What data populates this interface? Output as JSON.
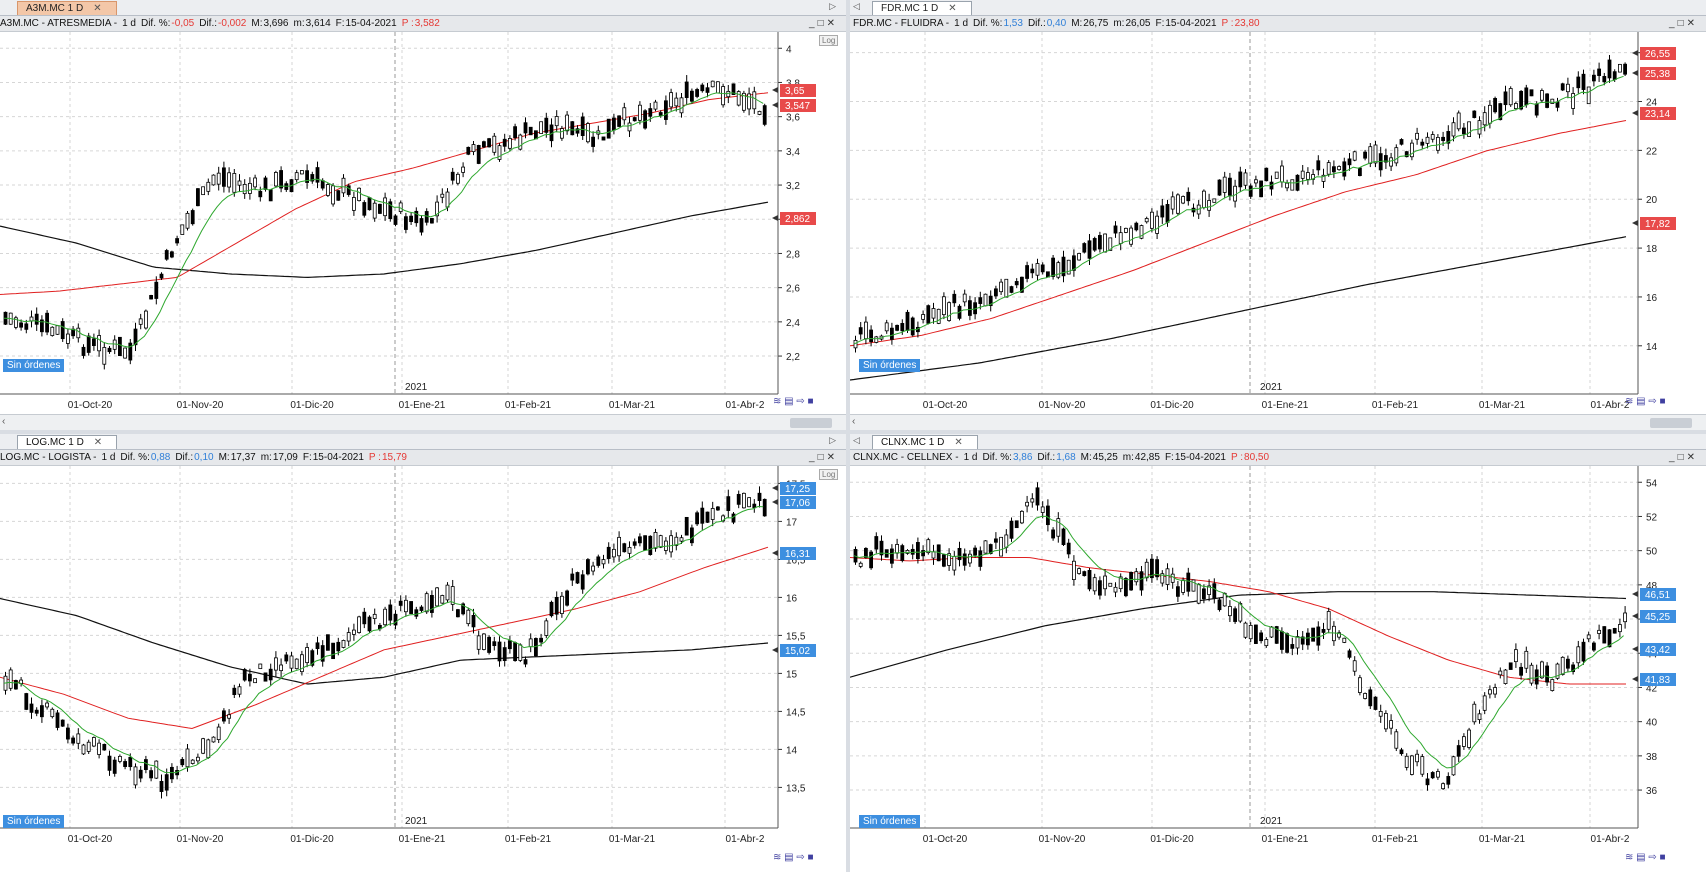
{
  "sin_ordenes": "Sin órdenes",
  "year_label": "2021",
  "log_button": "Log",
  "x_dates": [
    "01-Oct-20",
    "01-Nov-20",
    "01-Dic-20",
    "01-Ene-21",
    "01-Feb-21",
    "01-Mar-21",
    "01-Abr-2"
  ],
  "colors": {
    "ema_fast": "#2ea82e",
    "ema_mid": "#e02020",
    "ema_slow": "#111111",
    "bar": "#000000",
    "badge_red": "#e84a4a",
    "badge_blue": "#3d8fe0"
  },
  "panels": [
    {
      "tab": "A3M.MC 1 D",
      "symbol": "A3M.MC - ATRESMEDIA -",
      "period": "1 d",
      "dif_pct_label": "Dif. %:",
      "dif_pct": "-0,05",
      "dif_label": "Dif.:",
      "dif": "-0,002",
      "max_label": "M:",
      "max": "3,696",
      "min_label": "m:",
      "min": "3,614",
      "date_label": "F:",
      "date": "15-04-2021",
      "p_label": "P :",
      "p": "3,582",
      "y_ticks": [
        "4",
        "3,8",
        "3,6",
        "3,4",
        "3,2",
        "3",
        "2,8",
        "2,6",
        "2,4",
        "2,2"
      ],
      "badges": [
        {
          "text": "3,65",
          "color": "#e84a4a"
        },
        {
          "text": "3,547",
          "color": "#e84a4a"
        },
        {
          "text": "2,862",
          "color": "#e84a4a"
        }
      ]
    },
    {
      "tab": "FDR.MC 1 D",
      "symbol": "FDR.MC - FLUIDRA -",
      "period": "1 d",
      "dif_pct_label": "Dif. %:",
      "dif_pct": "1,53",
      "dif_label": "Dif.:",
      "dif": "0,40",
      "max_label": "M:",
      "max": "26,75",
      "min_label": "m:",
      "min": "26,05",
      "date_label": "F:",
      "date": "15-04-2021",
      "p_label": "P :",
      "p": "23,80",
      "y_ticks": [
        "26",
        "24",
        "22",
        "20",
        "18",
        "16",
        "14"
      ],
      "badges": [
        {
          "text": "26,55",
          "color": "#e84a4a"
        },
        {
          "text": "25,38",
          "color": "#e84a4a"
        },
        {
          "text": "23,14",
          "color": "#e84a4a"
        },
        {
          "text": "17,82",
          "color": "#e84a4a"
        }
      ]
    },
    {
      "tab": "LOG.MC 1 D",
      "symbol": "LOG.MC - LOGISTA -",
      "period": "1 d",
      "dif_pct_label": "Dif. %:",
      "dif_pct": "0,88",
      "dif_label": "Dif.:",
      "dif": "0,10",
      "max_label": "M:",
      "max": "17,37",
      "min_label": "m:",
      "min": "17,09",
      "date_label": "F:",
      "date": "15-04-2021",
      "p_label": "P :",
      "p": "15,79",
      "y_ticks": [
        "17,5",
        "17",
        "16,5",
        "16",
        "15,5",
        "15",
        "14,5",
        "14",
        "13,5"
      ],
      "badges": [
        {
          "text": "17,25",
          "color": "#3d8fe0"
        },
        {
          "text": "17,06",
          "color": "#3d8fe0"
        },
        {
          "text": "16,31",
          "color": "#3d8fe0"
        },
        {
          "text": "15,02",
          "color": "#3d8fe0"
        }
      ]
    },
    {
      "tab": "CLNX.MC 1 D",
      "symbol": "CLNX.MC - CELLNEX -",
      "period": "1 d",
      "dif_pct_label": "Dif. %:",
      "dif_pct": "3,86",
      "dif_label": "Dif.:",
      "dif": "1,68",
      "max_label": "M:",
      "max": "45,25",
      "min_label": "m:",
      "min": "42,85",
      "date_label": "F:",
      "date": "15-04-2021",
      "p_label": "P :",
      "p": "80,50",
      "y_ticks": [
        "54",
        "52",
        "50",
        "48",
        "46",
        "44",
        "42",
        "40",
        "38",
        "36"
      ],
      "badges": [
        {
          "text": "46,51",
          "color": "#3d8fe0"
        },
        {
          "text": "45,25",
          "color": "#3d8fe0"
        },
        {
          "text": "43,42",
          "color": "#3d8fe0"
        },
        {
          "text": "41,83",
          "color": "#3d8fe0"
        }
      ]
    }
  ]
}
